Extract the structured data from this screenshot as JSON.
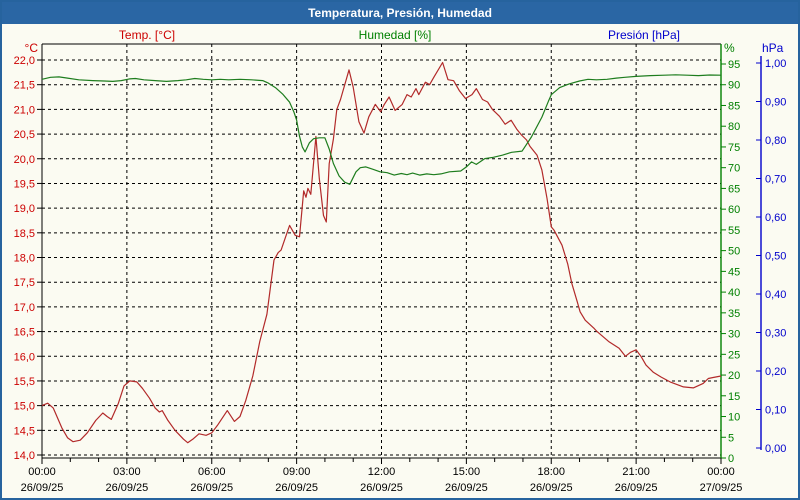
{
  "window": {
    "title": "Temperatura, Presión, Humedad"
  },
  "legend": {
    "items": [
      {
        "label": "Temp. [°C]",
        "color": "#cc0000"
      },
      {
        "label": "Humedad [%]",
        "color": "#008000"
      },
      {
        "label": "Presión [hPa]",
        "color": "#0000cc"
      }
    ]
  },
  "chart_data": {
    "type": "line",
    "title": "Temperatura, Presión, Humedad",
    "grid": "dashed, horizontal every 0.5 °C, vertical every 3 h",
    "axes": {
      "temperature": {
        "unit": "°C",
        "color": "#cc0000",
        "min": 14.0,
        "max": 22.0,
        "step": 0.5,
        "tick_labels": [
          "22,0",
          "21,5",
          "21,0",
          "20,5",
          "20,0",
          "19,5",
          "19,0",
          "18,5",
          "18,0",
          "17,5",
          "17,0",
          "16,5",
          "16,0",
          "15,5",
          "15,0",
          "14,5",
          "14,0"
        ],
        "side": "left"
      },
      "humidity": {
        "unit": "%",
        "color": "#008000",
        "min": 0,
        "max": 95,
        "step": 5,
        "tick_labels": [
          "95",
          "90",
          "85",
          "80",
          "75",
          "70",
          "65",
          "60",
          "55",
          "50",
          "45",
          "40",
          "35",
          "30",
          "25",
          "20",
          "15",
          "10",
          "5",
          "0"
        ],
        "side": "right"
      },
      "pressure": {
        "unit": "hPa",
        "color": "#0000cc",
        "min": 0.0,
        "max": 1.0,
        "step": 0.1,
        "tick_labels": [
          "1,00",
          "0,90",
          "0,80",
          "0,70",
          "0,60",
          "0,50",
          "0,40",
          "0,30",
          "0,20",
          "0,10",
          "0,00"
        ],
        "side": "far-right"
      }
    },
    "x_axis": {
      "range_hours": [
        0,
        24
      ],
      "major_tick_every_hours": 3,
      "minor_tick_every_hours": 1,
      "tick_times": [
        "00:00",
        "03:00",
        "06:00",
        "09:00",
        "12:00",
        "15:00",
        "18:00",
        "21:00",
        "00:00"
      ],
      "tick_dates": [
        "26/09/25",
        "26/09/25",
        "26/09/25",
        "26/09/25",
        "26/09/25",
        "26/09/25",
        "26/09/25",
        "26/09/25",
        "27/09/25"
      ]
    },
    "series": [
      {
        "name": "Temp. [°C]",
        "axis": "temperature",
        "color": "#b22a2a",
        "points": [
          [
            0,
            15.0
          ],
          [
            0.2,
            15.05
          ],
          [
            0.4,
            14.95
          ],
          [
            0.7,
            14.55
          ],
          [
            0.9,
            14.35
          ],
          [
            1.1,
            14.27
          ],
          [
            1.35,
            14.3
          ],
          [
            1.6,
            14.45
          ],
          [
            1.9,
            14.7
          ],
          [
            2.15,
            14.85
          ],
          [
            2.3,
            14.78
          ],
          [
            2.45,
            14.72
          ],
          [
            2.7,
            15.05
          ],
          [
            2.9,
            15.4
          ],
          [
            3.1,
            15.5
          ],
          [
            3.35,
            15.48
          ],
          [
            3.55,
            15.35
          ],
          [
            3.8,
            15.15
          ],
          [
            4.0,
            14.95
          ],
          [
            4.15,
            14.87
          ],
          [
            4.25,
            14.9
          ],
          [
            4.45,
            14.7
          ],
          [
            4.7,
            14.5
          ],
          [
            5.0,
            14.32
          ],
          [
            5.15,
            14.25
          ],
          [
            5.35,
            14.33
          ],
          [
            5.55,
            14.43
          ],
          [
            5.8,
            14.4
          ],
          [
            6.0,
            14.45
          ],
          [
            6.2,
            14.6
          ],
          [
            6.55,
            14.9
          ],
          [
            6.8,
            14.68
          ],
          [
            7.0,
            14.78
          ],
          [
            7.2,
            15.1
          ],
          [
            7.45,
            15.6
          ],
          [
            7.7,
            16.3
          ],
          [
            7.95,
            16.85
          ],
          [
            8.2,
            17.95
          ],
          [
            8.35,
            18.1
          ],
          [
            8.45,
            18.15
          ],
          [
            8.6,
            18.4
          ],
          [
            8.75,
            18.65
          ],
          [
            8.95,
            18.45
          ],
          [
            9.1,
            18.42
          ],
          [
            9.25,
            19.35
          ],
          [
            9.33,
            19.22
          ],
          [
            9.4,
            19.4
          ],
          [
            9.5,
            19.28
          ],
          [
            9.68,
            20.45
          ],
          [
            9.8,
            19.6
          ],
          [
            9.95,
            18.85
          ],
          [
            10.05,
            18.72
          ],
          [
            10.15,
            19.9
          ],
          [
            10.3,
            20.4
          ],
          [
            10.42,
            21.0
          ],
          [
            10.55,
            21.2
          ],
          [
            10.85,
            21.8
          ],
          [
            11.0,
            21.45
          ],
          [
            11.2,
            20.75
          ],
          [
            11.38,
            20.52
          ],
          [
            11.55,
            20.85
          ],
          [
            11.78,
            21.1
          ],
          [
            11.97,
            20.95
          ],
          [
            12.1,
            21.1
          ],
          [
            12.27,
            21.25
          ],
          [
            12.48,
            20.98
          ],
          [
            12.73,
            21.1
          ],
          [
            12.9,
            21.3
          ],
          [
            13.05,
            21.25
          ],
          [
            13.22,
            21.42
          ],
          [
            13.32,
            21.3
          ],
          [
            13.55,
            21.55
          ],
          [
            13.7,
            21.5
          ],
          [
            13.85,
            21.65
          ],
          [
            14.16,
            21.95
          ],
          [
            14.35,
            21.6
          ],
          [
            14.55,
            21.58
          ],
          [
            14.75,
            21.38
          ],
          [
            14.97,
            21.22
          ],
          [
            15.2,
            21.3
          ],
          [
            15.35,
            21.42
          ],
          [
            15.57,
            21.2
          ],
          [
            15.75,
            21.15
          ],
          [
            15.92,
            21.0
          ],
          [
            16.17,
            20.86
          ],
          [
            16.37,
            20.7
          ],
          [
            16.58,
            20.78
          ],
          [
            16.78,
            20.6
          ],
          [
            16.95,
            20.48
          ],
          [
            17.13,
            20.38
          ],
          [
            17.25,
            20.25
          ],
          [
            17.5,
            20.07
          ],
          [
            17.67,
            19.77
          ],
          [
            17.85,
            19.2
          ],
          [
            18.0,
            18.62
          ],
          [
            18.1,
            18.55
          ],
          [
            18.38,
            18.25
          ],
          [
            18.58,
            17.87
          ],
          [
            18.73,
            17.47
          ],
          [
            18.92,
            17.1
          ],
          [
            19.02,
            16.9
          ],
          [
            19.2,
            16.73
          ],
          [
            19.52,
            16.56
          ],
          [
            19.62,
            16.5
          ],
          [
            20.05,
            16.29
          ],
          [
            20.4,
            16.16
          ],
          [
            20.62,
            16.0
          ],
          [
            20.8,
            16.08
          ],
          [
            21.0,
            16.13
          ],
          [
            21.18,
            15.99
          ],
          [
            21.35,
            15.82
          ],
          [
            21.6,
            15.68
          ],
          [
            21.88,
            15.58
          ],
          [
            22.2,
            15.48
          ],
          [
            22.67,
            15.38
          ],
          [
            23.02,
            15.36
          ],
          [
            23.37,
            15.45
          ],
          [
            23.55,
            15.55
          ],
          [
            23.72,
            15.57
          ],
          [
            24,
            15.6
          ]
        ]
      },
      {
        "name": "Humedad [%]",
        "axis": "humidity",
        "color": "#1e7d1e",
        "points": [
          [
            0,
            91.3
          ],
          [
            0.3,
            91.8
          ],
          [
            0.6,
            91.9
          ],
          [
            0.9,
            91.6
          ],
          [
            1.3,
            91.2
          ],
          [
            1.8,
            91.0
          ],
          [
            2.2,
            90.9
          ],
          [
            2.5,
            90.8
          ],
          [
            2.8,
            91.0
          ],
          [
            3.1,
            91.4
          ],
          [
            3.3,
            91.5
          ],
          [
            3.6,
            91.2
          ],
          [
            4.0,
            91.0
          ],
          [
            4.4,
            90.8
          ],
          [
            4.8,
            91.0
          ],
          [
            5.1,
            91.2
          ],
          [
            5.4,
            91.5
          ],
          [
            5.7,
            91.3
          ],
          [
            6.0,
            91.2
          ],
          [
            6.3,
            91.3
          ],
          [
            6.6,
            91.2
          ],
          [
            7.0,
            91.3
          ],
          [
            7.4,
            91.2
          ],
          [
            7.8,
            91.0
          ],
          [
            8.0,
            90.4
          ],
          [
            8.25,
            89.3
          ],
          [
            8.5,
            87.8
          ],
          [
            8.75,
            85.8
          ],
          [
            8.9,
            83.5
          ],
          [
            9.0,
            81.5
          ],
          [
            9.1,
            77.6
          ],
          [
            9.2,
            75.0
          ],
          [
            9.3,
            73.8
          ],
          [
            9.45,
            76.0
          ],
          [
            9.6,
            77.0
          ],
          [
            9.8,
            77.2
          ],
          [
            10.0,
            77.2
          ],
          [
            10.15,
            74.5
          ],
          [
            10.3,
            71.0
          ],
          [
            10.5,
            68.0
          ],
          [
            10.7,
            66.5
          ],
          [
            10.88,
            66.0
          ],
          [
            11.1,
            69.0
          ],
          [
            11.25,
            70.0
          ],
          [
            11.45,
            70.2
          ],
          [
            11.7,
            69.6
          ],
          [
            11.95,
            69.0
          ],
          [
            12.2,
            68.8
          ],
          [
            12.45,
            68.2
          ],
          [
            12.7,
            68.6
          ],
          [
            12.9,
            68.3
          ],
          [
            13.1,
            68.7
          ],
          [
            13.35,
            68.2
          ],
          [
            13.6,
            68.5
          ],
          [
            13.85,
            68.3
          ],
          [
            14.1,
            68.5
          ],
          [
            14.4,
            69.0
          ],
          [
            14.8,
            69.2
          ],
          [
            15.0,
            70.2
          ],
          [
            15.18,
            71.4
          ],
          [
            15.35,
            70.8
          ],
          [
            15.65,
            72.2
          ],
          [
            15.95,
            72.5
          ],
          [
            16.27,
            73.0
          ],
          [
            16.6,
            73.7
          ],
          [
            16.97,
            74.0
          ],
          [
            17.3,
            77.4
          ],
          [
            17.67,
            82.2
          ],
          [
            17.9,
            86.0
          ],
          [
            18.0,
            87.6
          ],
          [
            18.3,
            89.3
          ],
          [
            18.63,
            90.2
          ],
          [
            19.0,
            90.9
          ],
          [
            19.3,
            91.3
          ],
          [
            19.6,
            91.2
          ],
          [
            19.97,
            91.3
          ],
          [
            20.3,
            91.6
          ],
          [
            20.6,
            91.8
          ],
          [
            21.0,
            92.0
          ],
          [
            21.5,
            92.2
          ],
          [
            22.0,
            92.3
          ],
          [
            22.4,
            92.4
          ],
          [
            22.8,
            92.3
          ],
          [
            23.2,
            92.2
          ],
          [
            23.6,
            92.35
          ],
          [
            24,
            92.3
          ]
        ]
      }
    ]
  }
}
